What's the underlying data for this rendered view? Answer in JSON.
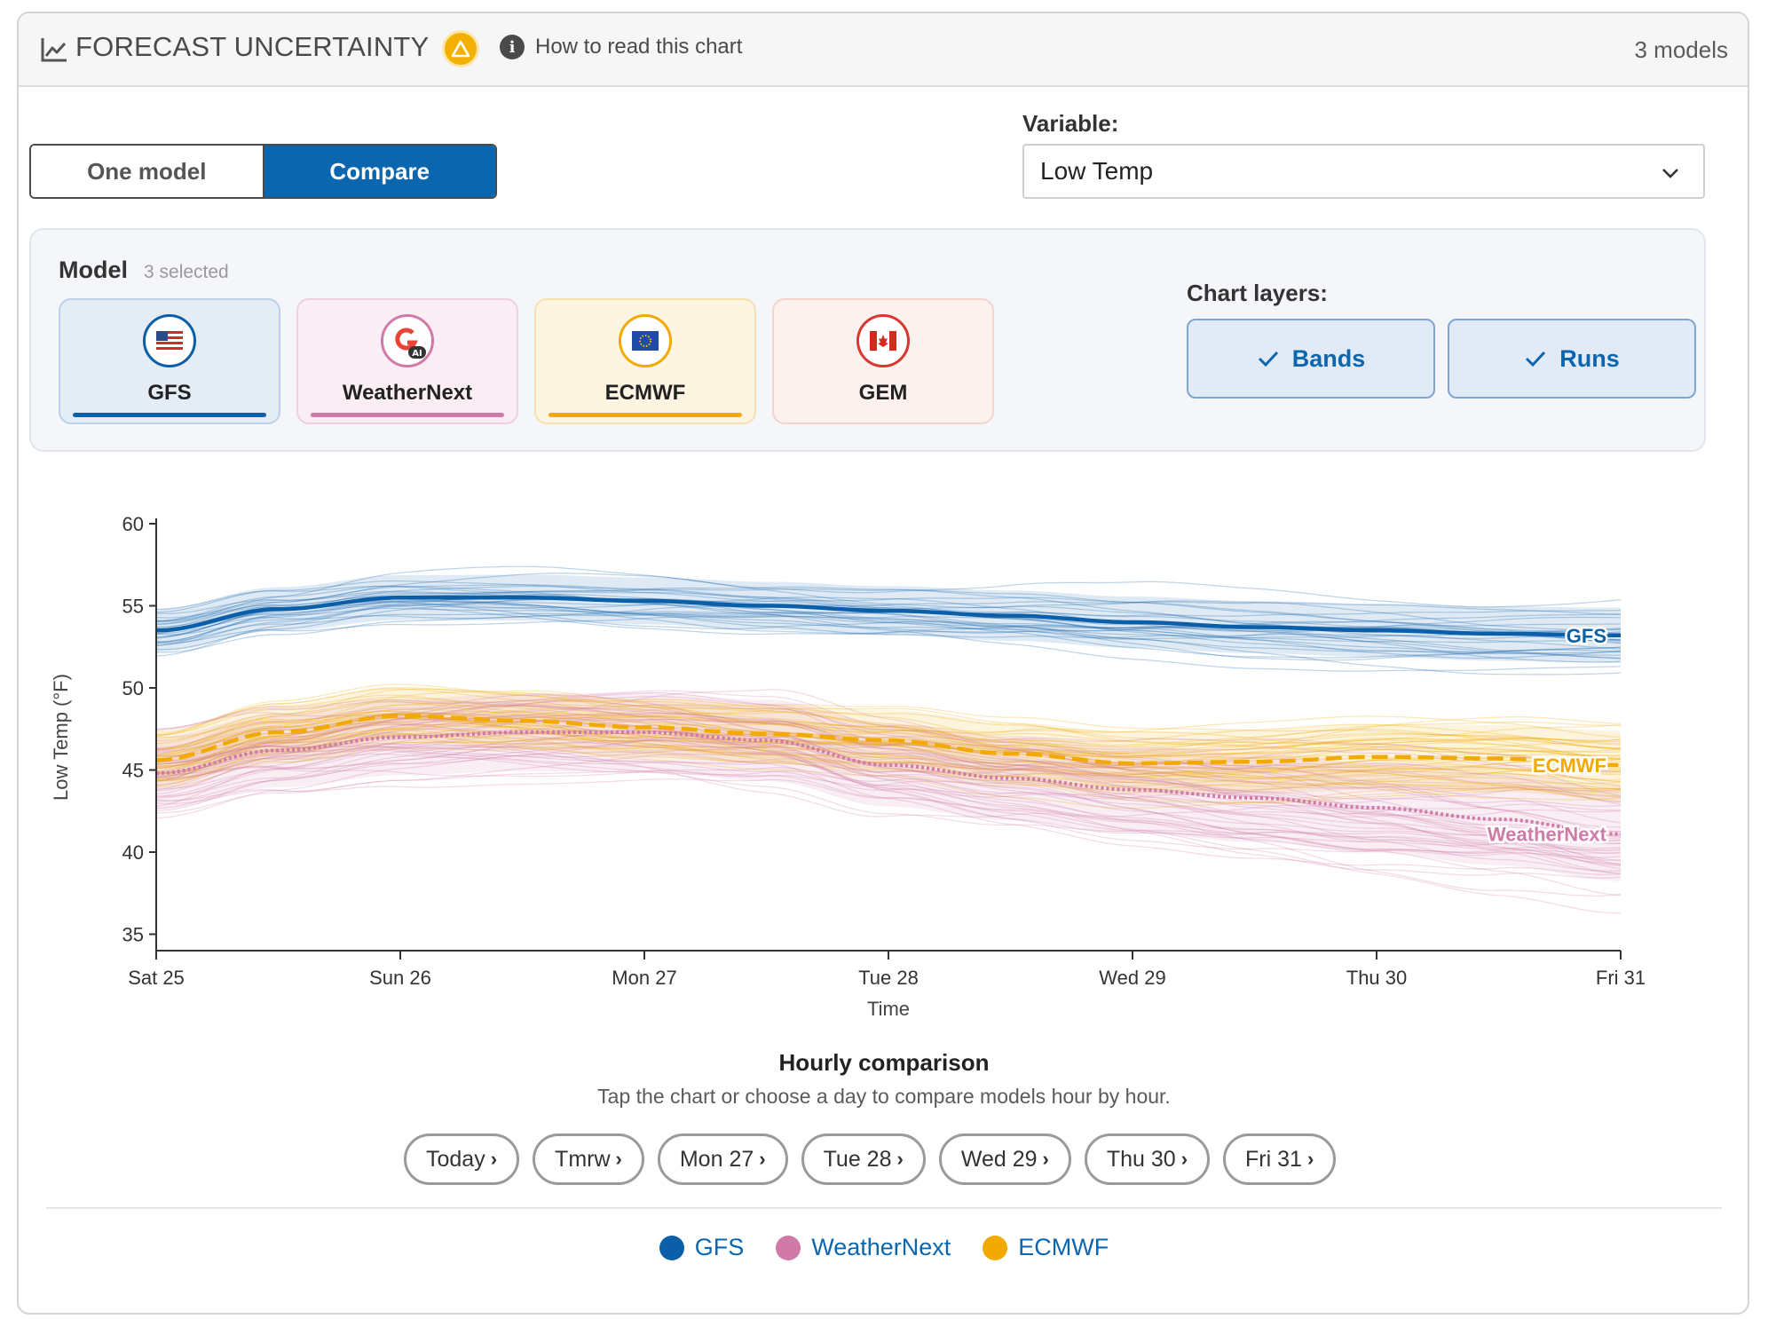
{
  "header": {
    "title": "FORECAST UNCERTAINTY",
    "info_link": "How to read this chart",
    "model_count": "3 models"
  },
  "mode_toggle": {
    "one": "One model",
    "compare": "Compare",
    "selected": "Compare"
  },
  "variable": {
    "label": "Variable:",
    "value": "Low Temp"
  },
  "models_panel": {
    "title": "Model",
    "selected_text": "3 selected",
    "models": [
      {
        "name": "GFS",
        "selected": true,
        "color": "#0b5ea8",
        "bg": "#e4ecf6",
        "border": "#bcd0e8",
        "flag": "us-flag-icon"
      },
      {
        "name": "WeatherNext",
        "selected": true,
        "color": "#d07aa8",
        "bg": "#faeef4",
        "border": "#efcfe0",
        "flag": "google-ai-icon"
      },
      {
        "name": "ECMWF",
        "selected": true,
        "color": "#f2a900",
        "bg": "#fdf4e1",
        "border": "#f5e0b0",
        "flag": "eu-flag-icon"
      },
      {
        "name": "GEM",
        "selected": false,
        "color": "#d9372f",
        "bg": "#fdf1ee",
        "border": "#f3d4cf",
        "flag": "canada-flag-icon"
      }
    ]
  },
  "chart_layers": {
    "label": "Chart layers:",
    "bands": "Bands",
    "runs": "Runs"
  },
  "chart_data": {
    "type": "line",
    "xlabel": "Time",
    "ylabel": "Low Temp (°F)",
    "x_ticks": [
      "Sat 25",
      "Sun 26",
      "Mon 27",
      "Tue 28",
      "Wed 29",
      "Thu 30",
      "Fri 31"
    ],
    "y_ticks": [
      35,
      40,
      45,
      50,
      55,
      60
    ],
    "ylim": [
      34,
      60
    ],
    "x_range": [
      0,
      6
    ],
    "grid": false,
    "series": [
      {
        "name": "GFS",
        "color": "#0b5ea8",
        "style": "solid",
        "x": [
          0,
          0.5,
          1,
          1.5,
          2,
          2.5,
          3,
          3.5,
          4,
          4.5,
          5,
          5.5,
          6
        ],
        "y": [
          53.5,
          54.8,
          55.5,
          55.5,
          55.3,
          55.0,
          54.7,
          54.4,
          54.0,
          53.7,
          53.5,
          53.3,
          53.2
        ],
        "band": 1.3
      },
      {
        "name": "ECMWF",
        "color": "#f2a900",
        "style": "dashed",
        "x": [
          0,
          0.5,
          1,
          1.5,
          2,
          2.5,
          3,
          3.5,
          4,
          4.5,
          5,
          5.5,
          6
        ],
        "y": [
          45.6,
          47.3,
          48.3,
          48.0,
          47.6,
          47.2,
          46.8,
          46.0,
          45.4,
          45.5,
          45.8,
          45.7,
          45.3
        ],
        "band": 1.6
      },
      {
        "name": "WeatherNext",
        "color": "#d07aa8",
        "style": "dotted",
        "x": [
          0,
          0.5,
          1,
          1.5,
          2,
          2.5,
          3,
          3.5,
          4,
          4.5,
          5,
          5.5,
          6
        ],
        "y": [
          44.8,
          46.2,
          47.0,
          47.3,
          47.3,
          46.8,
          45.3,
          44.5,
          43.8,
          43.3,
          42.7,
          42.0,
          41.1
        ],
        "band": 2.2
      }
    ]
  },
  "hourly": {
    "title": "Hourly comparison",
    "subtitle": "Tap the chart or choose a day to compare models hour by hour.",
    "days": [
      "Today",
      "Tmrw",
      "Mon 27",
      "Tue 28",
      "Wed 29",
      "Thu 30",
      "Fri 31"
    ]
  },
  "legend": [
    {
      "name": "GFS",
      "color": "#0b5ea8"
    },
    {
      "name": "WeatherNext",
      "color": "#d07aa8"
    },
    {
      "name": "ECMWF",
      "color": "#f2a900"
    }
  ]
}
